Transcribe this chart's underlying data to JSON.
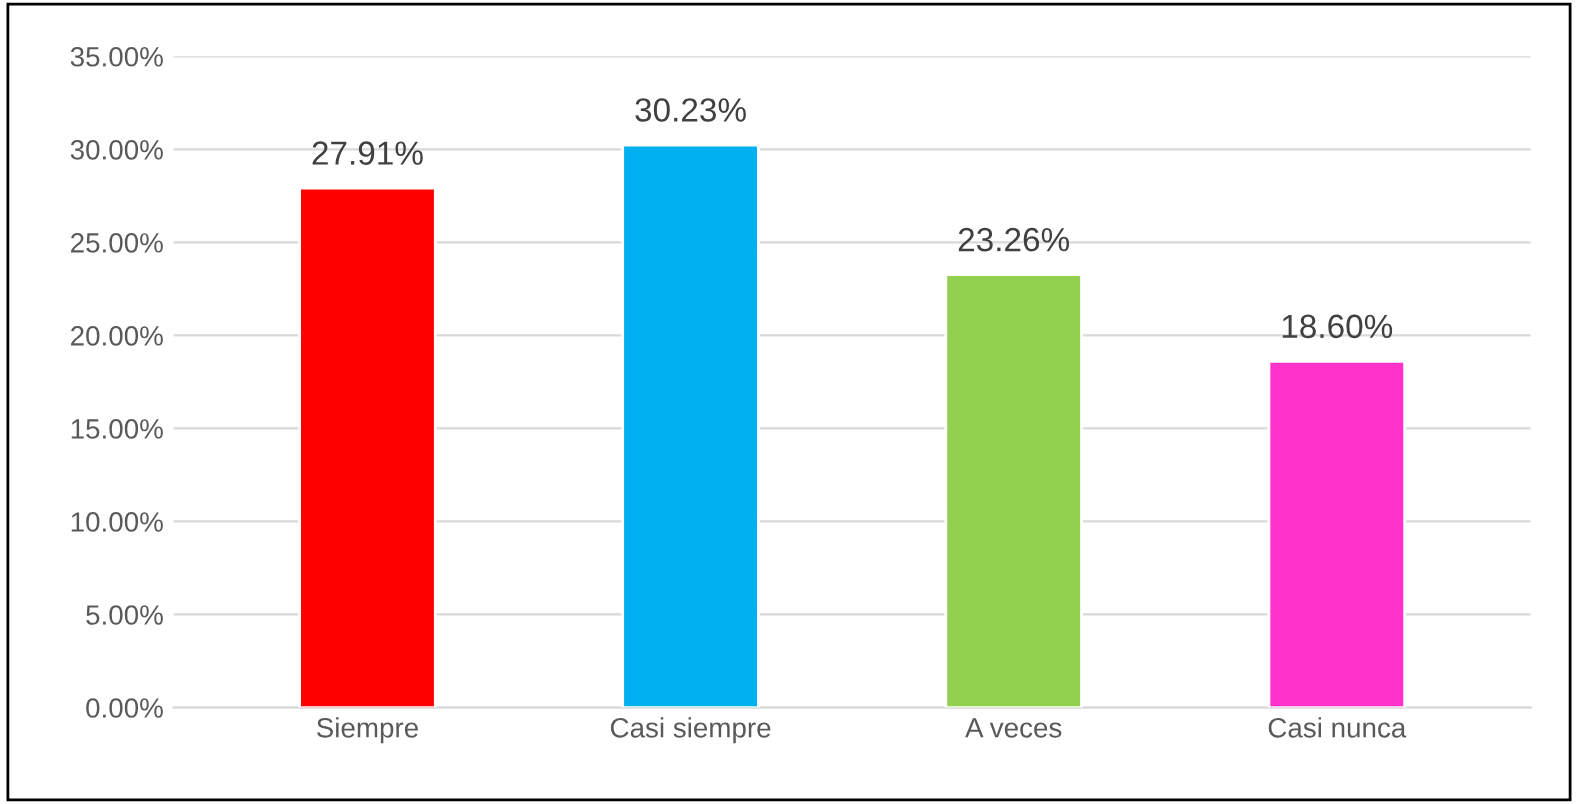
{
  "chart_data": {
    "type": "bar",
    "categories": [
      "Siempre",
      "Casi siempre",
      "A veces",
      "Casi nunca"
    ],
    "values": [
      27.91,
      30.23,
      23.26,
      18.6
    ],
    "colors": [
      "#ff0000",
      "#00b0f0",
      "#92d050",
      "#ff33cc"
    ],
    "value_labels": [
      "27.91%",
      "30.23%",
      "23.26%",
      "18.60%"
    ],
    "ylim": [
      0,
      35
    ],
    "yticks": [
      {
        "value": 0,
        "label": "0.00%"
      },
      {
        "value": 5,
        "label": "5.00%"
      },
      {
        "value": 10,
        "label": "10.00%"
      },
      {
        "value": 15,
        "label": "15.00%"
      },
      {
        "value": 20,
        "label": "20.00%"
      },
      {
        "value": 25,
        "label": "25.00%"
      },
      {
        "value": 30,
        "label": "30.00%"
      },
      {
        "value": 35,
        "label": "35.00%"
      }
    ],
    "grid": "y",
    "legend": false
  }
}
